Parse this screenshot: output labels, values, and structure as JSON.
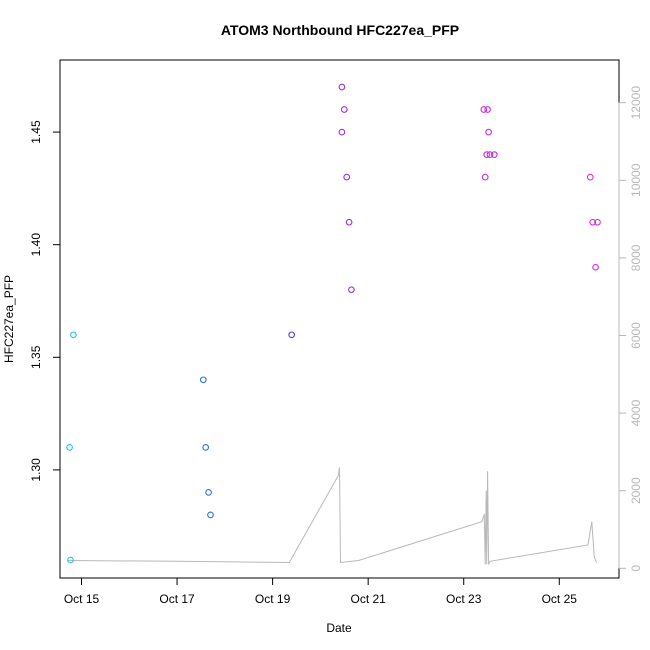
{
  "chart_data": {
    "type": "scatter",
    "title": "ATOM3 Northbound HFC227ea_PFP",
    "xlabel": "Date",
    "ylabel": "HFC227ea_PFP",
    "x_ticks": [
      {
        "label": "Oct 15",
        "day": 15
      },
      {
        "label": "Oct 17",
        "day": 17
      },
      {
        "label": "Oct 19",
        "day": 19
      },
      {
        "label": "Oct 21",
        "day": 21
      },
      {
        "label": "Oct 23",
        "day": 23
      },
      {
        "label": "Oct 25",
        "day": 25
      }
    ],
    "xlim": [
      14.55,
      26.25
    ],
    "ylim": [
      1.252,
      1.482
    ],
    "y_ticks": [
      1.3,
      1.35,
      1.4,
      1.45
    ],
    "y2lim": [
      -250,
      13100
    ],
    "y2_ticks": [
      0,
      2000,
      4000,
      6000,
      8000,
      10000,
      12000
    ],
    "grid": false,
    "points": [
      {
        "x": 14.75,
        "y": 1.31,
        "color": "#22c4f0"
      },
      {
        "x": 14.77,
        "y": 1.26,
        "color": "#22c4f0"
      },
      {
        "x": 14.83,
        "y": 1.36,
        "color": "#22c4f0"
      },
      {
        "x": 17.55,
        "y": 1.34,
        "color": "#2f6fe6"
      },
      {
        "x": 17.6,
        "y": 1.31,
        "color": "#2f6fe6"
      },
      {
        "x": 17.66,
        "y": 1.29,
        "color": "#2f6fe6"
      },
      {
        "x": 17.7,
        "y": 1.28,
        "color": "#2f6fe6"
      },
      {
        "x": 19.4,
        "y": 1.36,
        "color": "#5a33e0"
      },
      {
        "x": 20.45,
        "y": 1.47,
        "color": "#9b30e8"
      },
      {
        "x": 20.45,
        "y": 1.45,
        "color": "#9b30e8"
      },
      {
        "x": 20.5,
        "y": 1.46,
        "color": "#9b30e8"
      },
      {
        "x": 20.55,
        "y": 1.43,
        "color": "#9b30e8"
      },
      {
        "x": 20.6,
        "y": 1.41,
        "color": "#9b30e8"
      },
      {
        "x": 20.65,
        "y": 1.38,
        "color": "#9b30e8"
      },
      {
        "x": 23.42,
        "y": 1.46,
        "color": "#c62ee0"
      },
      {
        "x": 23.45,
        "y": 1.43,
        "color": "#c62ee0"
      },
      {
        "x": 23.48,
        "y": 1.44,
        "color": "#c62ee0"
      },
      {
        "x": 23.5,
        "y": 1.46,
        "color": "#c62ee0"
      },
      {
        "x": 23.52,
        "y": 1.45,
        "color": "#c62ee0"
      },
      {
        "x": 23.55,
        "y": 1.44,
        "color": "#c62ee0"
      },
      {
        "x": 23.64,
        "y": 1.44,
        "color": "#c62ee0"
      },
      {
        "x": 25.65,
        "y": 1.43,
        "color": "#e02ed6"
      },
      {
        "x": 25.7,
        "y": 1.41,
        "color": "#e02ed6"
      },
      {
        "x": 25.76,
        "y": 1.39,
        "color": "#e02ed6"
      },
      {
        "x": 25.8,
        "y": 1.41,
        "color": "#e02ed6"
      }
    ],
    "altitude_series": {
      "color": "#b8b8b8",
      "points": [
        [
          14.7,
          200
        ],
        [
          17.0,
          180
        ],
        [
          19.35,
          150
        ],
        [
          20.38,
          2400
        ],
        [
          20.4,
          2600
        ],
        [
          20.42,
          150
        ],
        [
          20.8,
          200
        ],
        [
          23.38,
          1200
        ],
        [
          23.43,
          1400
        ],
        [
          23.45,
          100
        ],
        [
          23.47,
          2000
        ],
        [
          23.48,
          100
        ],
        [
          23.5,
          2500
        ],
        [
          23.52,
          100
        ],
        [
          23.55,
          180
        ],
        [
          25.6,
          600
        ],
        [
          25.68,
          1200
        ],
        [
          25.73,
          300
        ],
        [
          25.78,
          150
        ]
      ]
    }
  }
}
